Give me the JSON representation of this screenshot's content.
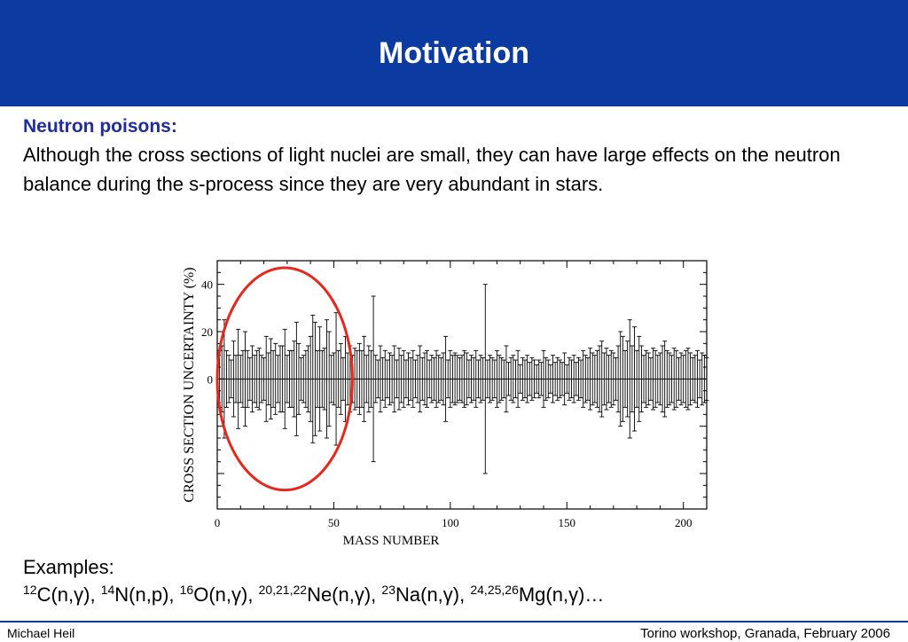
{
  "slide": {
    "title": "Motivation",
    "subhead": "Neutron poisons:",
    "paragraph": "Although the cross sections of light nuclei are small, they can have large effects on the neutron balance during the s-process since they are very abundant in stars.",
    "examples_label": "Examples:",
    "examples": [
      {
        "sup": "12",
        "text": "C(n,γ), "
      },
      {
        "sup": "14",
        "text": "N(n,p), "
      },
      {
        "sup": "16",
        "text": "O(n,γ), "
      },
      {
        "sup": "20,21,22",
        "text": "Ne(n,γ), "
      },
      {
        "sup": "23",
        "text": "Na(n,γ), "
      },
      {
        "sup": "24,25,26",
        "text": "Mg(n,γ)…"
      }
    ],
    "footer_left": "Michael Heil",
    "footer_right": "Torino workshop, Granada,  February 2006"
  },
  "colors": {
    "header": "#0b3aa0",
    "subhead": "#1f2e9a",
    "highlight_circle": "#e8271c"
  },
  "chart_data": {
    "type": "errorbar",
    "xlabel": "MASS  NUMBER",
    "ylabel": "CROSS  SECTION  UNCERTAINTY  (%)",
    "xlim": [
      0,
      210
    ],
    "ylim": [
      -55,
      50
    ],
    "xticks": [
      0,
      50,
      100,
      150,
      200
    ],
    "yticks_labeled": [
      0,
      20,
      40
    ],
    "yticks_minor": [
      -20,
      -40
    ],
    "highlight": {
      "shape": "ellipse",
      "x_range": [
        0,
        58
      ],
      "y_range": [
        -47,
        47
      ]
    },
    "series": [
      {
        "x": [
          1,
          2,
          3,
          4,
          5,
          6,
          7,
          8,
          9,
          10,
          11,
          12,
          13,
          14,
          15,
          16,
          17,
          18,
          19,
          20,
          21,
          22,
          23,
          24,
          25,
          26,
          27,
          28,
          29,
          30,
          31,
          32,
          33,
          34,
          35,
          36,
          37,
          38,
          39,
          40,
          41,
          42,
          43,
          44,
          45,
          46,
          47,
          48,
          49,
          50,
          51,
          52,
          53,
          54,
          55,
          56,
          57,
          58,
          59,
          60,
          61,
          62,
          63,
          64,
          65,
          66,
          67,
          68,
          69,
          70,
          71,
          72,
          73,
          74,
          75,
          76,
          77,
          78,
          79,
          80,
          81,
          82,
          83,
          84,
          85,
          86,
          87,
          88,
          89,
          90,
          91,
          92,
          93,
          94,
          95,
          96,
          97,
          98,
          99,
          100,
          101,
          102,
          103,
          104,
          105,
          106,
          107,
          108,
          109,
          110,
          111,
          112,
          113,
          114,
          115,
          116,
          117,
          118,
          119,
          120,
          121,
          122,
          123,
          124,
          125,
          126,
          127,
          128,
          129,
          130,
          131,
          132,
          133,
          134,
          135,
          136,
          137,
          138,
          139,
          140,
          141,
          142,
          143,
          144,
          145,
          146,
          147,
          148,
          149,
          150,
          151,
          152,
          153,
          154,
          155,
          156,
          157,
          158,
          159,
          160,
          161,
          162,
          163,
          164,
          165,
          166,
          167,
          168,
          169,
          170,
          171,
          172,
          173,
          174,
          175,
          176,
          177,
          178,
          179,
          180,
          181,
          182,
          183,
          184,
          185,
          186,
          187,
          188,
          189,
          190,
          191,
          192,
          193,
          194,
          195,
          196,
          197,
          198,
          199,
          200,
          201,
          202,
          203,
          204,
          205,
          206,
          207,
          208,
          209,
          210
        ],
        "uncertainty": [
          12,
          14,
          25,
          12,
          10,
          8,
          16,
          10,
          21,
          10,
          12,
          20,
          12,
          9,
          14,
          10,
          12,
          13,
          10,
          9,
          18,
          11,
          17,
          12,
          15,
          10,
          14,
          14,
          21,
          10,
          12,
          12,
          16,
          24,
          15,
          9,
          10,
          12,
          14,
          18,
          27,
          24,
          12,
          22,
          12,
          13,
          25,
          20,
          10,
          11,
          28,
          12,
          15,
          9,
          18,
          11,
          14,
          10,
          13,
          12,
          15,
          12,
          18,
          10,
          14,
          12,
          35,
          10,
          8,
          14,
          9,
          12,
          8,
          11,
          10,
          14,
          8,
          13,
          10,
          12,
          8,
          11,
          9,
          12,
          8,
          10,
          14,
          9,
          11,
          12,
          8,
          10,
          9,
          12,
          10,
          9,
          11,
          18,
          8,
          12,
          10,
          11,
          10,
          9,
          10,
          12,
          11,
          8,
          10,
          9,
          12,
          8,
          10,
          9,
          40,
          8,
          10,
          9,
          8,
          12,
          10,
          9,
          8,
          14,
          7,
          9,
          10,
          8,
          12,
          6,
          9,
          8,
          10,
          7,
          9,
          8,
          6,
          8,
          7,
          12,
          9,
          8,
          6,
          10,
          7,
          9,
          8,
          7,
          11,
          6,
          9,
          8,
          10,
          7,
          9,
          8,
          12,
          10,
          9,
          13,
          11,
          10,
          12,
          14,
          16,
          11,
          13,
          10,
          12,
          11,
          9,
          14,
          20,
          18,
          12,
          16,
          25,
          14,
          22,
          12,
          18,
          14,
          10,
          12,
          11,
          9,
          13,
          12,
          10,
          11,
          14,
          16,
          12,
          11,
          10,
          13,
          12,
          9,
          11,
          10,
          12,
          13,
          11,
          9,
          10,
          12,
          8,
          11,
          10,
          9
        ]
      }
    ]
  }
}
